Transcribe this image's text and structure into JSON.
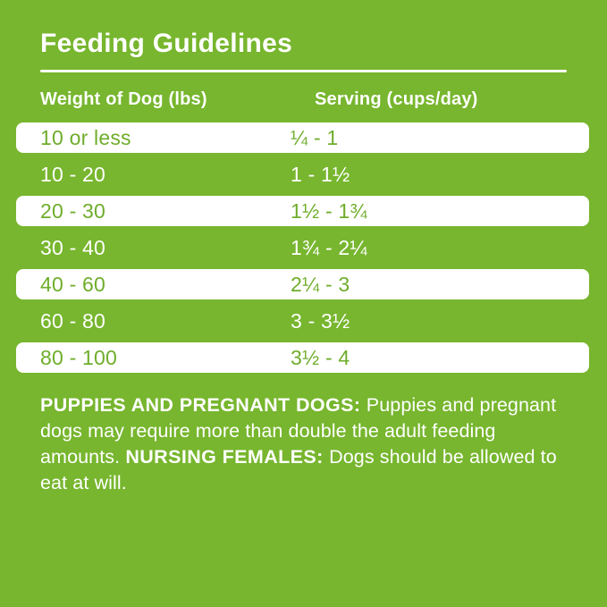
{
  "title": "Feeding Guidelines",
  "table": {
    "columns": [
      "Weight of Dog (lbs)",
      "Serving (cups/day)"
    ],
    "rows": [
      {
        "weight": "10 or less",
        "serving": "¼ - 1"
      },
      {
        "weight": "10 - 20",
        "serving": "1 - 1½"
      },
      {
        "weight": "20 - 30",
        "serving": "1½ - 1¾"
      },
      {
        "weight": "30 - 40",
        "serving": "1¾ - 2¼"
      },
      {
        "weight": "40 - 60",
        "serving": "2¼ - 3"
      },
      {
        "weight": "60 - 80",
        "serving": "3 - 3½"
      },
      {
        "weight": "80 - 100",
        "serving": "3½ - 4"
      }
    ]
  },
  "notes": {
    "segments": [
      {
        "text": "PUPPIES AND PREGNANT DOGS: ",
        "bold": true
      },
      {
        "text": "Puppies and pregnant dogs may require more than double the adult feeding amounts. ",
        "bold": false
      },
      {
        "text": "NURSING FEMALES: ",
        "bold": true
      },
      {
        "text": "Dogs should be allowed to eat at will.",
        "bold": false
      }
    ]
  },
  "colors": {
    "background_green": "#77b62e",
    "text_on_white": "#6fad2b",
    "text_on_green": "#ffffff",
    "row_white": "#ffffff"
  }
}
